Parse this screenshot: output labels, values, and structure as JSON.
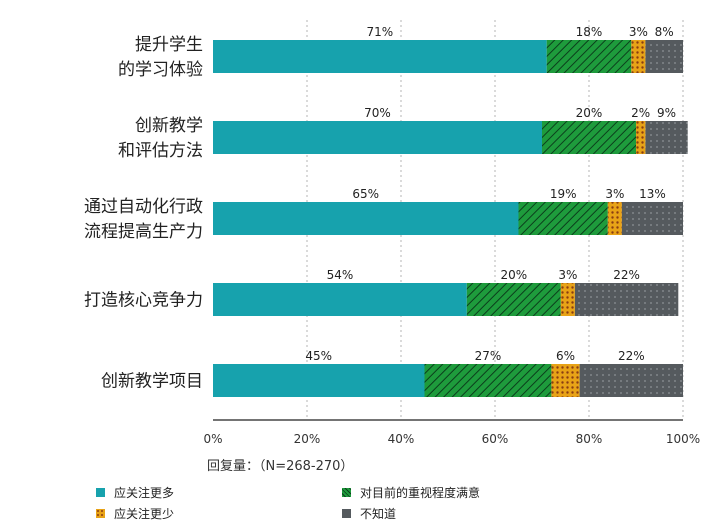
{
  "chart_data": {
    "type": "bar",
    "orientation": "horizontal",
    "stacked": true,
    "categories": [
      "提升学生\n的学习体验",
      "创新教学\n和评估方法",
      "通过自动化行政\n流程提高生产力",
      "打造核心竞争力",
      "创新教学项目"
    ],
    "series": [
      {
        "name": "应关注更多",
        "values": [
          71,
          70,
          65,
          54,
          45
        ],
        "labels": [
          "71%",
          "70%",
          "65%",
          "54%",
          "45%"
        ]
      },
      {
        "name": "对目前的重视程度满意",
        "values": [
          18,
          20,
          19,
          20,
          27
        ],
        "labels": [
          "18%",
          "20%",
          "19%",
          "20%",
          "27%"
        ]
      },
      {
        "name": "应关注更少",
        "values": [
          3,
          2,
          3,
          3,
          6
        ],
        "labels": [
          "3%",
          "2%",
          "3%",
          "3%",
          "6%"
        ]
      },
      {
        "name": "不知道",
        "values": [
          8,
          9,
          13,
          22,
          22
        ],
        "labels": [
          "8%",
          "9%",
          "13%",
          "22%",
          "22%"
        ]
      }
    ],
    "xlim": [
      0,
      100
    ],
    "xticks": [
      "0%",
      "20%",
      "40%",
      "60%",
      "80%",
      "100%"
    ],
    "grid": true,
    "legend_position": "bottom",
    "colors": {
      "teal": "#17a2ad",
      "green": "#1e9b3c",
      "orange": "#e8a317",
      "gray": "#555a5e"
    },
    "note": "回复量：（N=268-270）"
  }
}
